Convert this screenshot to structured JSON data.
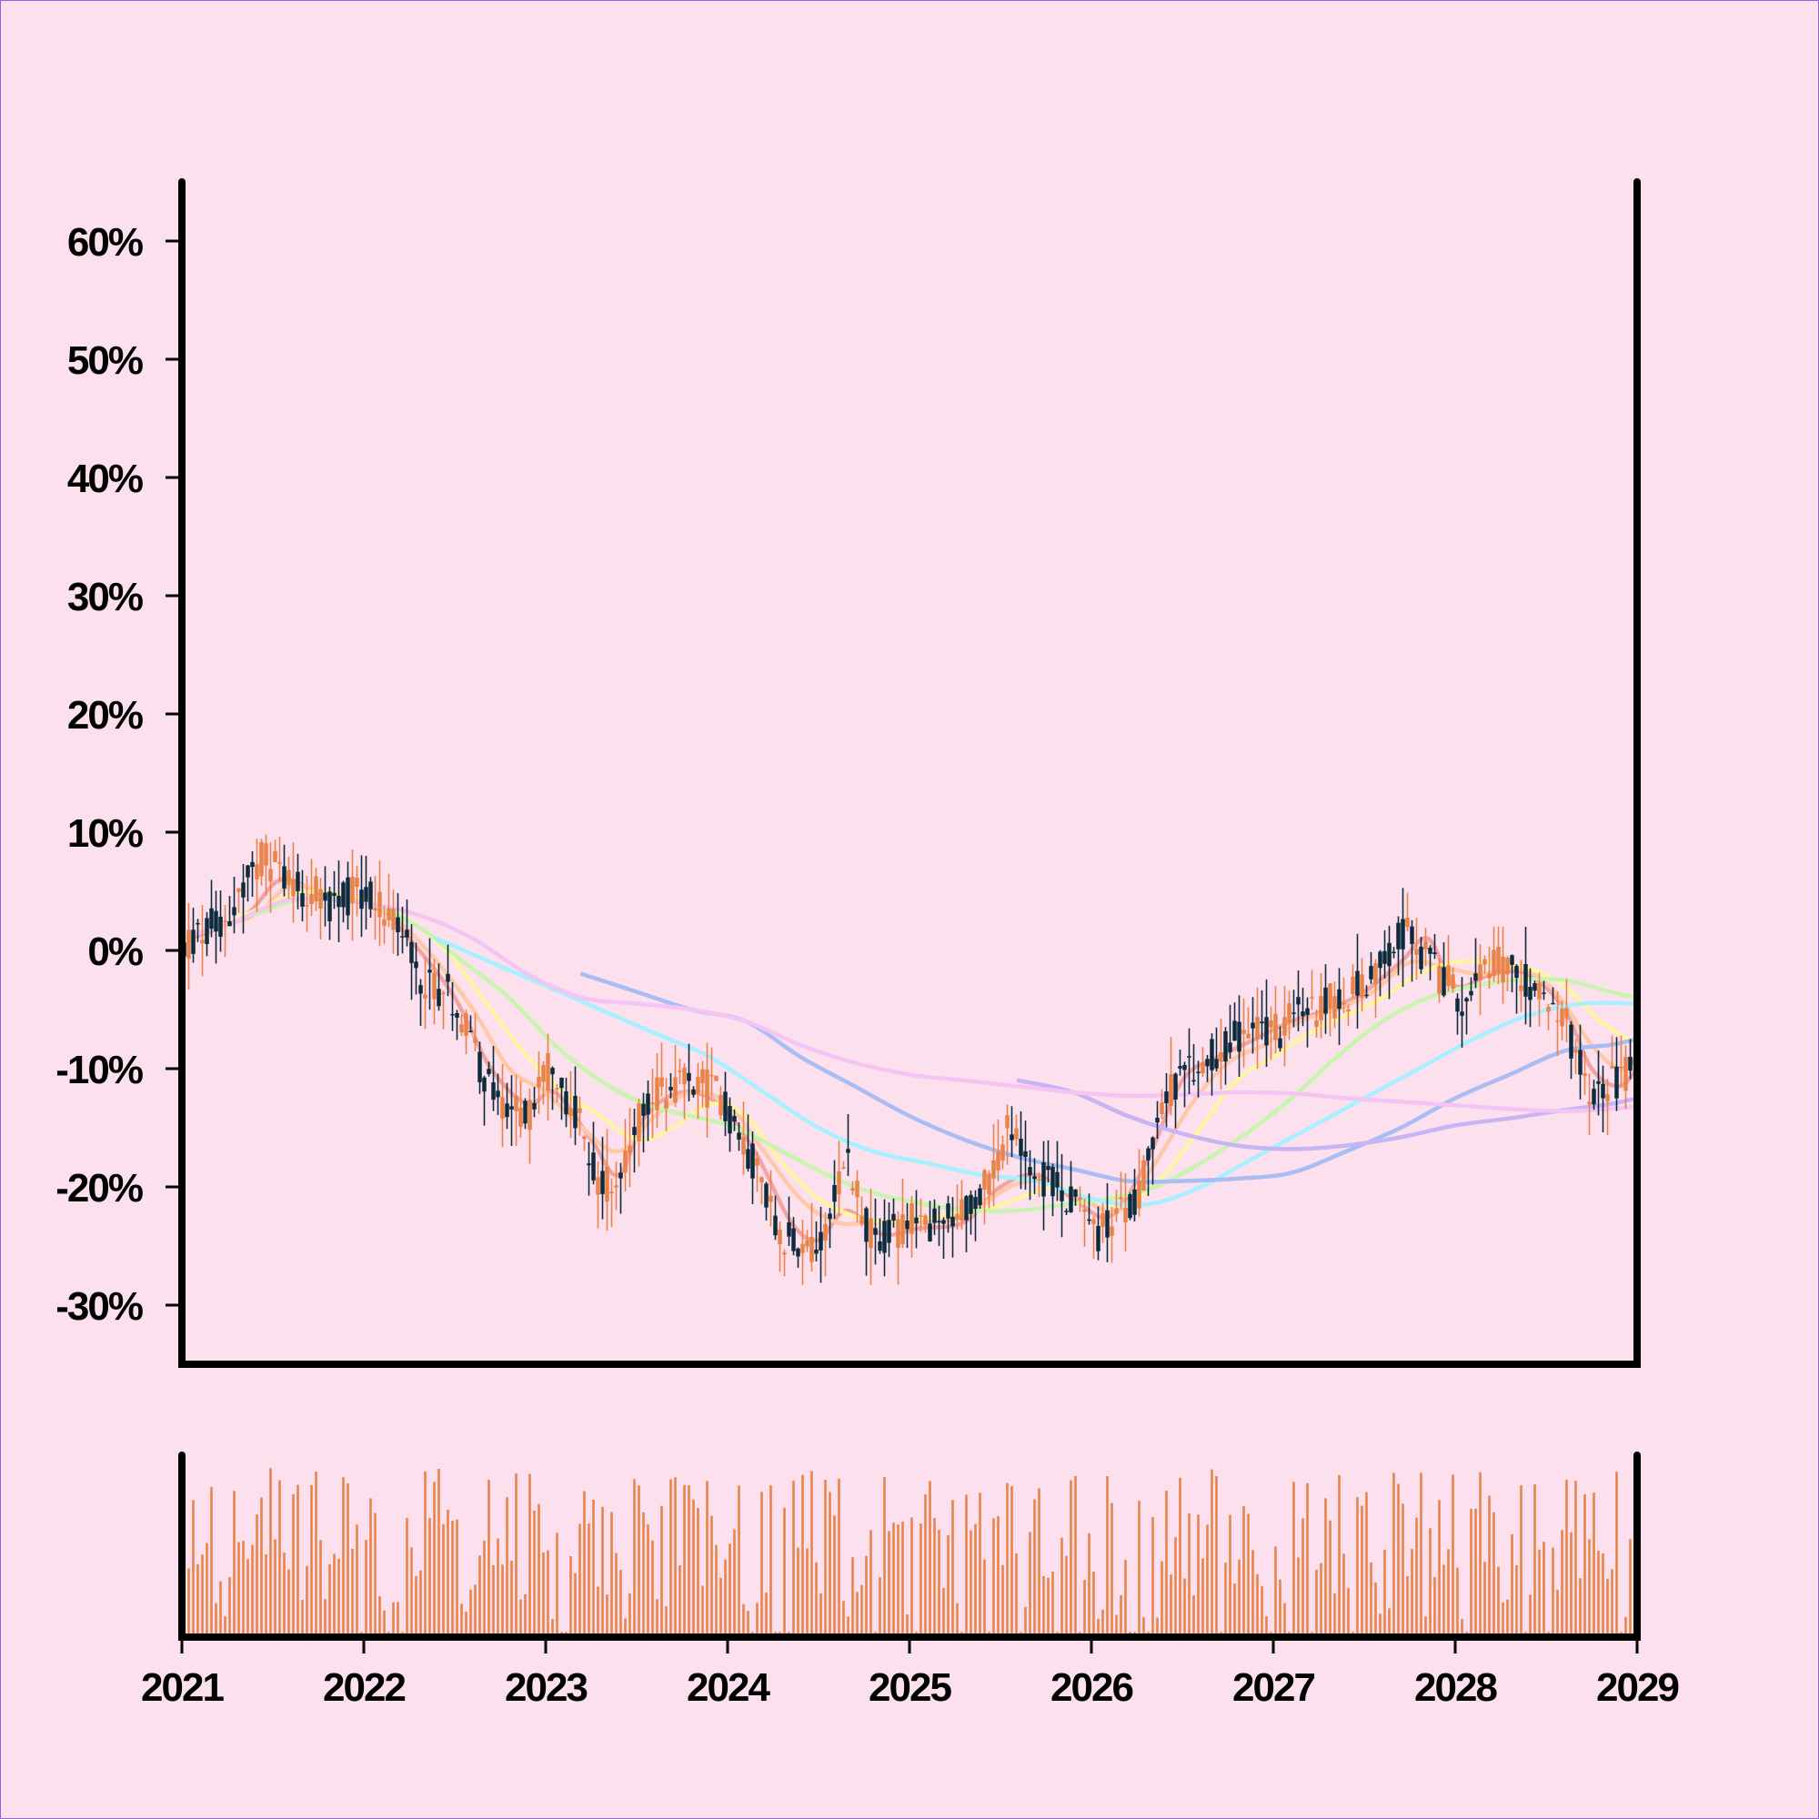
{
  "chart_data": {
    "type": "candlestick",
    "title": "",
    "xlabel": "",
    "ylabel": "",
    "x_ticks": [
      "2021",
      "2022",
      "2023",
      "2024",
      "2025",
      "2026",
      "2027",
      "2028",
      "2029"
    ],
    "x_range": [
      "2021",
      "2029"
    ],
    "y_ticks": [
      "60%",
      "50%",
      "40%",
      "30%",
      "20%",
      "10%",
      "0%",
      "-10%",
      "-20%",
      "-30%"
    ],
    "ylim": [
      -35,
      65
    ],
    "grid": false,
    "legend": "none",
    "candle_colors": {
      "up": "#e8834a",
      "down": "#0d2b3c"
    },
    "volume_color": "#e8834a",
    "price_anchors": [
      [
        2021.0,
        0
      ],
      [
        2021.25,
        3
      ],
      [
        2021.45,
        8
      ],
      [
        2021.6,
        6
      ],
      [
        2021.8,
        4
      ],
      [
        2022.0,
        5
      ],
      [
        2022.15,
        3
      ],
      [
        2022.3,
        -2
      ],
      [
        2022.5,
        -4
      ],
      [
        2022.7,
        -12
      ],
      [
        2022.9,
        -14
      ],
      [
        2023.0,
        -10
      ],
      [
        2023.15,
        -13
      ],
      [
        2023.3,
        -20
      ],
      [
        2023.4,
        -19
      ],
      [
        2023.55,
        -13
      ],
      [
        2023.75,
        -11
      ],
      [
        2023.95,
        -12
      ],
      [
        2024.15,
        -18
      ],
      [
        2024.3,
        -24
      ],
      [
        2024.5,
        -25
      ],
      [
        2024.65,
        -17
      ],
      [
        2024.8,
        -25
      ],
      [
        2025.0,
        -23
      ],
      [
        2025.2,
        -23
      ],
      [
        2025.35,
        -22
      ],
      [
        2025.55,
        -15
      ],
      [
        2025.7,
        -19
      ],
      [
        2025.9,
        -21
      ],
      [
        2026.05,
        -24
      ],
      [
        2026.25,
        -21
      ],
      [
        2026.4,
        -12
      ],
      [
        2026.6,
        -10
      ],
      [
        2026.8,
        -7
      ],
      [
        2027.0,
        -7
      ],
      [
        2027.2,
        -5
      ],
      [
        2027.4,
        -4
      ],
      [
        2027.55,
        -2
      ],
      [
        2027.7,
        2
      ],
      [
        2027.9,
        -2
      ],
      [
        2028.05,
        -4
      ],
      [
        2028.25,
        -1
      ],
      [
        2028.45,
        -3
      ],
      [
        2028.6,
        -6
      ],
      [
        2028.75,
        -12
      ],
      [
        2028.9,
        -11
      ],
      [
        2029.0,
        -9
      ]
    ],
    "moving_averages": [
      {
        "color": "#f4a3a3",
        "points": [
          [
            2021.05,
            1
          ],
          [
            2021.35,
            3
          ],
          [
            2021.55,
            6
          ],
          [
            2021.8,
            4.5
          ],
          [
            2022.05,
            4
          ],
          [
            2022.25,
            1
          ],
          [
            2022.5,
            -4
          ],
          [
            2022.7,
            -10
          ],
          [
            2022.9,
            -13
          ],
          [
            2023.05,
            -12
          ],
          [
            2023.25,
            -16
          ],
          [
            2023.4,
            -19
          ],
          [
            2023.55,
            -14
          ],
          [
            2023.75,
            -12
          ],
          [
            2023.95,
            -13
          ],
          [
            2024.15,
            -17
          ],
          [
            2024.35,
            -23
          ],
          [
            2024.5,
            -24.5
          ],
          [
            2024.65,
            -22
          ],
          [
            2024.85,
            -24
          ],
          [
            2025.05,
            -23.5
          ],
          [
            2025.3,
            -23
          ],
          [
            2025.5,
            -20
          ],
          [
            2025.7,
            -19
          ],
          [
            2025.9,
            -21
          ],
          [
            2026.1,
            -22.5
          ],
          [
            2026.3,
            -18
          ],
          [
            2026.5,
            -11
          ],
          [
            2026.7,
            -9
          ],
          [
            2026.9,
            -7.5
          ],
          [
            2027.1,
            -6
          ],
          [
            2027.3,
            -5
          ],
          [
            2027.5,
            -3.5
          ],
          [
            2027.7,
            -1
          ],
          [
            2027.85,
            1
          ],
          [
            2028.0,
            -3
          ],
          [
            2028.2,
            -2
          ],
          [
            2028.4,
            -2
          ],
          [
            2028.6,
            -5
          ],
          [
            2028.75,
            -10
          ],
          [
            2028.9,
            -11.5
          ],
          [
            2029.0,
            -10
          ]
        ]
      },
      {
        "color": "#ffc8a8",
        "points": [
          [
            2021.1,
            1.5
          ],
          [
            2021.4,
            3
          ],
          [
            2021.6,
            5.5
          ],
          [
            2021.85,
            4.5
          ],
          [
            2022.1,
            3.5
          ],
          [
            2022.35,
            0
          ],
          [
            2022.6,
            -5
          ],
          [
            2022.8,
            -10
          ],
          [
            2023.0,
            -12
          ],
          [
            2023.2,
            -15
          ],
          [
            2023.4,
            -17
          ],
          [
            2023.6,
            -14
          ],
          [
            2023.8,
            -12
          ],
          [
            2024.0,
            -13
          ],
          [
            2024.2,
            -17
          ],
          [
            2024.4,
            -21
          ],
          [
            2024.6,
            -23
          ],
          [
            2024.8,
            -23
          ],
          [
            2025.05,
            -23
          ],
          [
            2025.3,
            -22.5
          ],
          [
            2025.55,
            -20
          ],
          [
            2025.75,
            -19.5
          ],
          [
            2025.95,
            -21
          ],
          [
            2026.15,
            -22
          ],
          [
            2026.35,
            -18
          ],
          [
            2026.55,
            -13
          ],
          [
            2026.75,
            -9.5
          ],
          [
            2026.95,
            -8
          ],
          [
            2027.15,
            -6
          ],
          [
            2027.35,
            -5
          ],
          [
            2027.55,
            -3.5
          ],
          [
            2027.75,
            -1
          ],
          [
            2027.95,
            -1.5
          ],
          [
            2028.15,
            -2
          ],
          [
            2028.35,
            -1.5
          ],
          [
            2028.55,
            -3.5
          ],
          [
            2028.75,
            -8
          ],
          [
            2028.9,
            -10
          ],
          [
            2029.0,
            -9
          ]
        ]
      },
      {
        "color": "#fff4a3",
        "points": [
          [
            2021.2,
            2
          ],
          [
            2021.5,
            4
          ],
          [
            2021.7,
            5
          ],
          [
            2021.95,
            4.5
          ],
          [
            2022.2,
            3
          ],
          [
            2022.45,
            0
          ],
          [
            2022.7,
            -5
          ],
          [
            2022.9,
            -9
          ],
          [
            2023.1,
            -12
          ],
          [
            2023.3,
            -14
          ],
          [
            2023.5,
            -16
          ],
          [
            2023.7,
            -15
          ],
          [
            2023.9,
            -13
          ],
          [
            2024.1,
            -14
          ],
          [
            2024.3,
            -18
          ],
          [
            2024.5,
            -21
          ],
          [
            2024.7,
            -22.5
          ],
          [
            2024.9,
            -23
          ],
          [
            2025.15,
            -22.5
          ],
          [
            2025.4,
            -22
          ],
          [
            2025.6,
            -21
          ],
          [
            2025.8,
            -20
          ],
          [
            2026.0,
            -21
          ],
          [
            2026.2,
            -21.5
          ],
          [
            2026.4,
            -19
          ],
          [
            2026.6,
            -15
          ],
          [
            2026.8,
            -11
          ],
          [
            2027.0,
            -9
          ],
          [
            2027.2,
            -7
          ],
          [
            2027.4,
            -5.5
          ],
          [
            2027.6,
            -4
          ],
          [
            2027.8,
            -2
          ],
          [
            2028.0,
            -1
          ],
          [
            2028.2,
            -1
          ],
          [
            2028.4,
            -1.5
          ],
          [
            2028.6,
            -3
          ],
          [
            2028.8,
            -6
          ],
          [
            2029.0,
            -8
          ]
        ]
      },
      {
        "color": "#c8f4b0",
        "points": [
          [
            2021.4,
            3
          ],
          [
            2021.7,
            4.5
          ],
          [
            2022.0,
            4
          ],
          [
            2022.3,
            2
          ],
          [
            2022.55,
            -1
          ],
          [
            2022.8,
            -4
          ],
          [
            2023.05,
            -8
          ],
          [
            2023.3,
            -11
          ],
          [
            2023.55,
            -13
          ],
          [
            2023.8,
            -14
          ],
          [
            2024.05,
            -15
          ],
          [
            2024.3,
            -17
          ],
          [
            2024.55,
            -19
          ],
          [
            2024.8,
            -20.5
          ],
          [
            2025.1,
            -21.5
          ],
          [
            2025.35,
            -22
          ],
          [
            2025.6,
            -22
          ],
          [
            2025.85,
            -21.5
          ],
          [
            2026.1,
            -21
          ],
          [
            2026.35,
            -20
          ],
          [
            2026.6,
            -18
          ],
          [
            2026.85,
            -15.5
          ],
          [
            2027.1,
            -12.5
          ],
          [
            2027.35,
            -9
          ],
          [
            2027.6,
            -6
          ],
          [
            2027.85,
            -4
          ],
          [
            2028.1,
            -3
          ],
          [
            2028.35,
            -2.5
          ],
          [
            2028.6,
            -2.5
          ],
          [
            2028.85,
            -3.5
          ],
          [
            2029.0,
            -4
          ]
        ]
      },
      {
        "color": "#a8f0ff",
        "points": [
          [
            2022.4,
            1
          ],
          [
            2022.7,
            -1
          ],
          [
            2023.0,
            -3
          ],
          [
            2023.3,
            -5
          ],
          [
            2023.6,
            -7
          ],
          [
            2023.9,
            -9
          ],
          [
            2024.2,
            -12
          ],
          [
            2024.5,
            -15
          ],
          [
            2024.8,
            -17
          ],
          [
            2025.1,
            -18
          ],
          [
            2025.4,
            -19
          ],
          [
            2025.7,
            -19.5
          ],
          [
            2026.0,
            -21
          ],
          [
            2026.3,
            -21.5
          ],
          [
            2026.6,
            -20
          ],
          [
            2026.9,
            -17.5
          ],
          [
            2027.2,
            -15
          ],
          [
            2027.5,
            -12.5
          ],
          [
            2027.8,
            -10
          ],
          [
            2028.1,
            -7.5
          ],
          [
            2028.4,
            -5.5
          ],
          [
            2028.7,
            -4.5
          ],
          [
            2029.0,
            -4.5
          ]
        ]
      },
      {
        "color": "#aabcf4",
        "points": [
          [
            2023.2,
            -2
          ],
          [
            2023.5,
            -3.5
          ],
          [
            2023.8,
            -5
          ],
          [
            2024.1,
            -6
          ],
          [
            2024.4,
            -9
          ],
          [
            2024.7,
            -11.5
          ],
          [
            2025.0,
            -14
          ],
          [
            2025.3,
            -16
          ],
          [
            2025.6,
            -17.5
          ],
          [
            2025.9,
            -18.5
          ],
          [
            2026.2,
            -19.5
          ],
          [
            2026.5,
            -19.5
          ],
          [
            2026.8,
            -19.3
          ],
          [
            2027.1,
            -18.8
          ],
          [
            2027.4,
            -17
          ],
          [
            2027.7,
            -15
          ],
          [
            2028.0,
            -12.5
          ],
          [
            2028.3,
            -10.5
          ],
          [
            2028.6,
            -8.5
          ],
          [
            2028.85,
            -8
          ],
          [
            2029.0,
            -7.5
          ]
        ]
      },
      {
        "color": "#c6b4f4",
        "points": [
          [
            2025.6,
            -11
          ],
          [
            2025.9,
            -12
          ],
          [
            2026.2,
            -14
          ],
          [
            2026.5,
            -15.5
          ],
          [
            2026.8,
            -16.5
          ],
          [
            2027.1,
            -16.8
          ],
          [
            2027.4,
            -16.5
          ],
          [
            2027.7,
            -15.8
          ],
          [
            2028.0,
            -14.8
          ],
          [
            2028.3,
            -14.2
          ],
          [
            2028.6,
            -13.5
          ],
          [
            2028.85,
            -13
          ],
          [
            2029.0,
            -12.5
          ]
        ]
      },
      {
        "color": "#f4c4f4",
        "points": [
          [
            2021.0,
            1
          ],
          [
            2021.1,
            1.5
          ],
          [
            2021.3,
            2.5
          ],
          [
            2021.6,
            4.3
          ],
          [
            2022.0,
            4
          ],
          [
            2022.3,
            3
          ],
          [
            2022.6,
            1
          ],
          [
            2022.9,
            -2
          ],
          [
            2023.2,
            -4
          ],
          [
            2023.5,
            -4.5
          ],
          [
            2023.8,
            -5
          ],
          [
            2024.1,
            -6
          ],
          [
            2024.4,
            -8
          ],
          [
            2024.7,
            -9.5
          ],
          [
            2025.0,
            -10.5
          ],
          [
            2025.3,
            -11
          ],
          [
            2025.6,
            -11.5
          ],
          [
            2025.9,
            -12
          ],
          [
            2026.2,
            -12.3
          ],
          [
            2026.5,
            -12.2
          ],
          [
            2026.8,
            -12
          ],
          [
            2027.1,
            -12.1
          ],
          [
            2027.4,
            -12.5
          ],
          [
            2027.7,
            -12.8
          ],
          [
            2028.0,
            -13.1
          ],
          [
            2028.3,
            -13.4
          ],
          [
            2028.6,
            -13.6
          ],
          [
            2028.85,
            -13.4
          ],
          [
            2029.0,
            -13.2
          ]
        ]
      }
    ]
  }
}
